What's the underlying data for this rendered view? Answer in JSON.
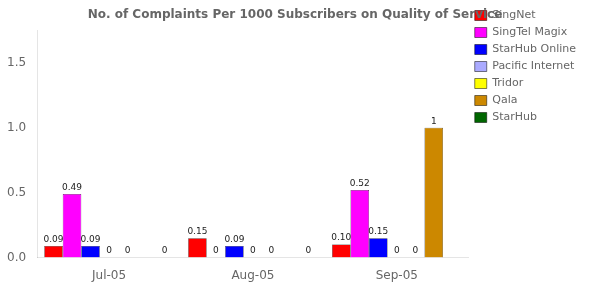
{
  "chart_data": {
    "type": "bar",
    "title": "No. of Complaints Per 1000 Subscribers on Quality of Service",
    "categories": [
      "Jul-05",
      "Aug-05",
      "Sep-05"
    ],
    "series": [
      {
        "name": "SingNet",
        "color": "#FF0000",
        "values": [
          0.09,
          0.15,
          0.1
        ],
        "value_labels": [
          "0.09",
          "0.15",
          "0.10"
        ]
      },
      {
        "name": "SingTel Magix",
        "color": "#FF00FF",
        "values": [
          0.49,
          0.0,
          0.52
        ],
        "value_labels": [
          "0.49",
          "0",
          "0.52"
        ]
      },
      {
        "name": "StarHub Online",
        "color": "#0000FF",
        "values": [
          0.09,
          0.09,
          0.15
        ],
        "value_labels": [
          "0.09",
          "0.09",
          "0.15"
        ]
      },
      {
        "name": "Pacific Internet",
        "color": "#AAAAFF",
        "values": [
          0.0,
          0.0,
          0.0
        ],
        "value_labels": [
          "0",
          "0",
          "0"
        ]
      },
      {
        "name": "Tridor",
        "color": "#FFFF00",
        "values": [
          0.0,
          0.0,
          0.0
        ],
        "value_labels": [
          "0",
          "0",
          "0"
        ]
      },
      {
        "name": "Qala",
        "color": "#CC8800",
        "values": [
          0.0,
          0.0,
          1.0
        ],
        "value_labels": [
          null,
          null,
          "1"
        ]
      },
      {
        "name": "StarHub",
        "color": "#006600",
        "values": [
          0.0,
          0.0,
          0.0
        ],
        "value_labels": [
          "0",
          "0",
          null
        ]
      }
    ],
    "ylim": [
      0,
      1.75
    ],
    "yticks": [
      {
        "value": 0,
        "label": "0.0"
      },
      0.5,
      {
        "value": 1,
        "label": "1.0"
      },
      1.5
    ],
    "grid": false,
    "legend": "upper right",
    "data_labels": true
  }
}
